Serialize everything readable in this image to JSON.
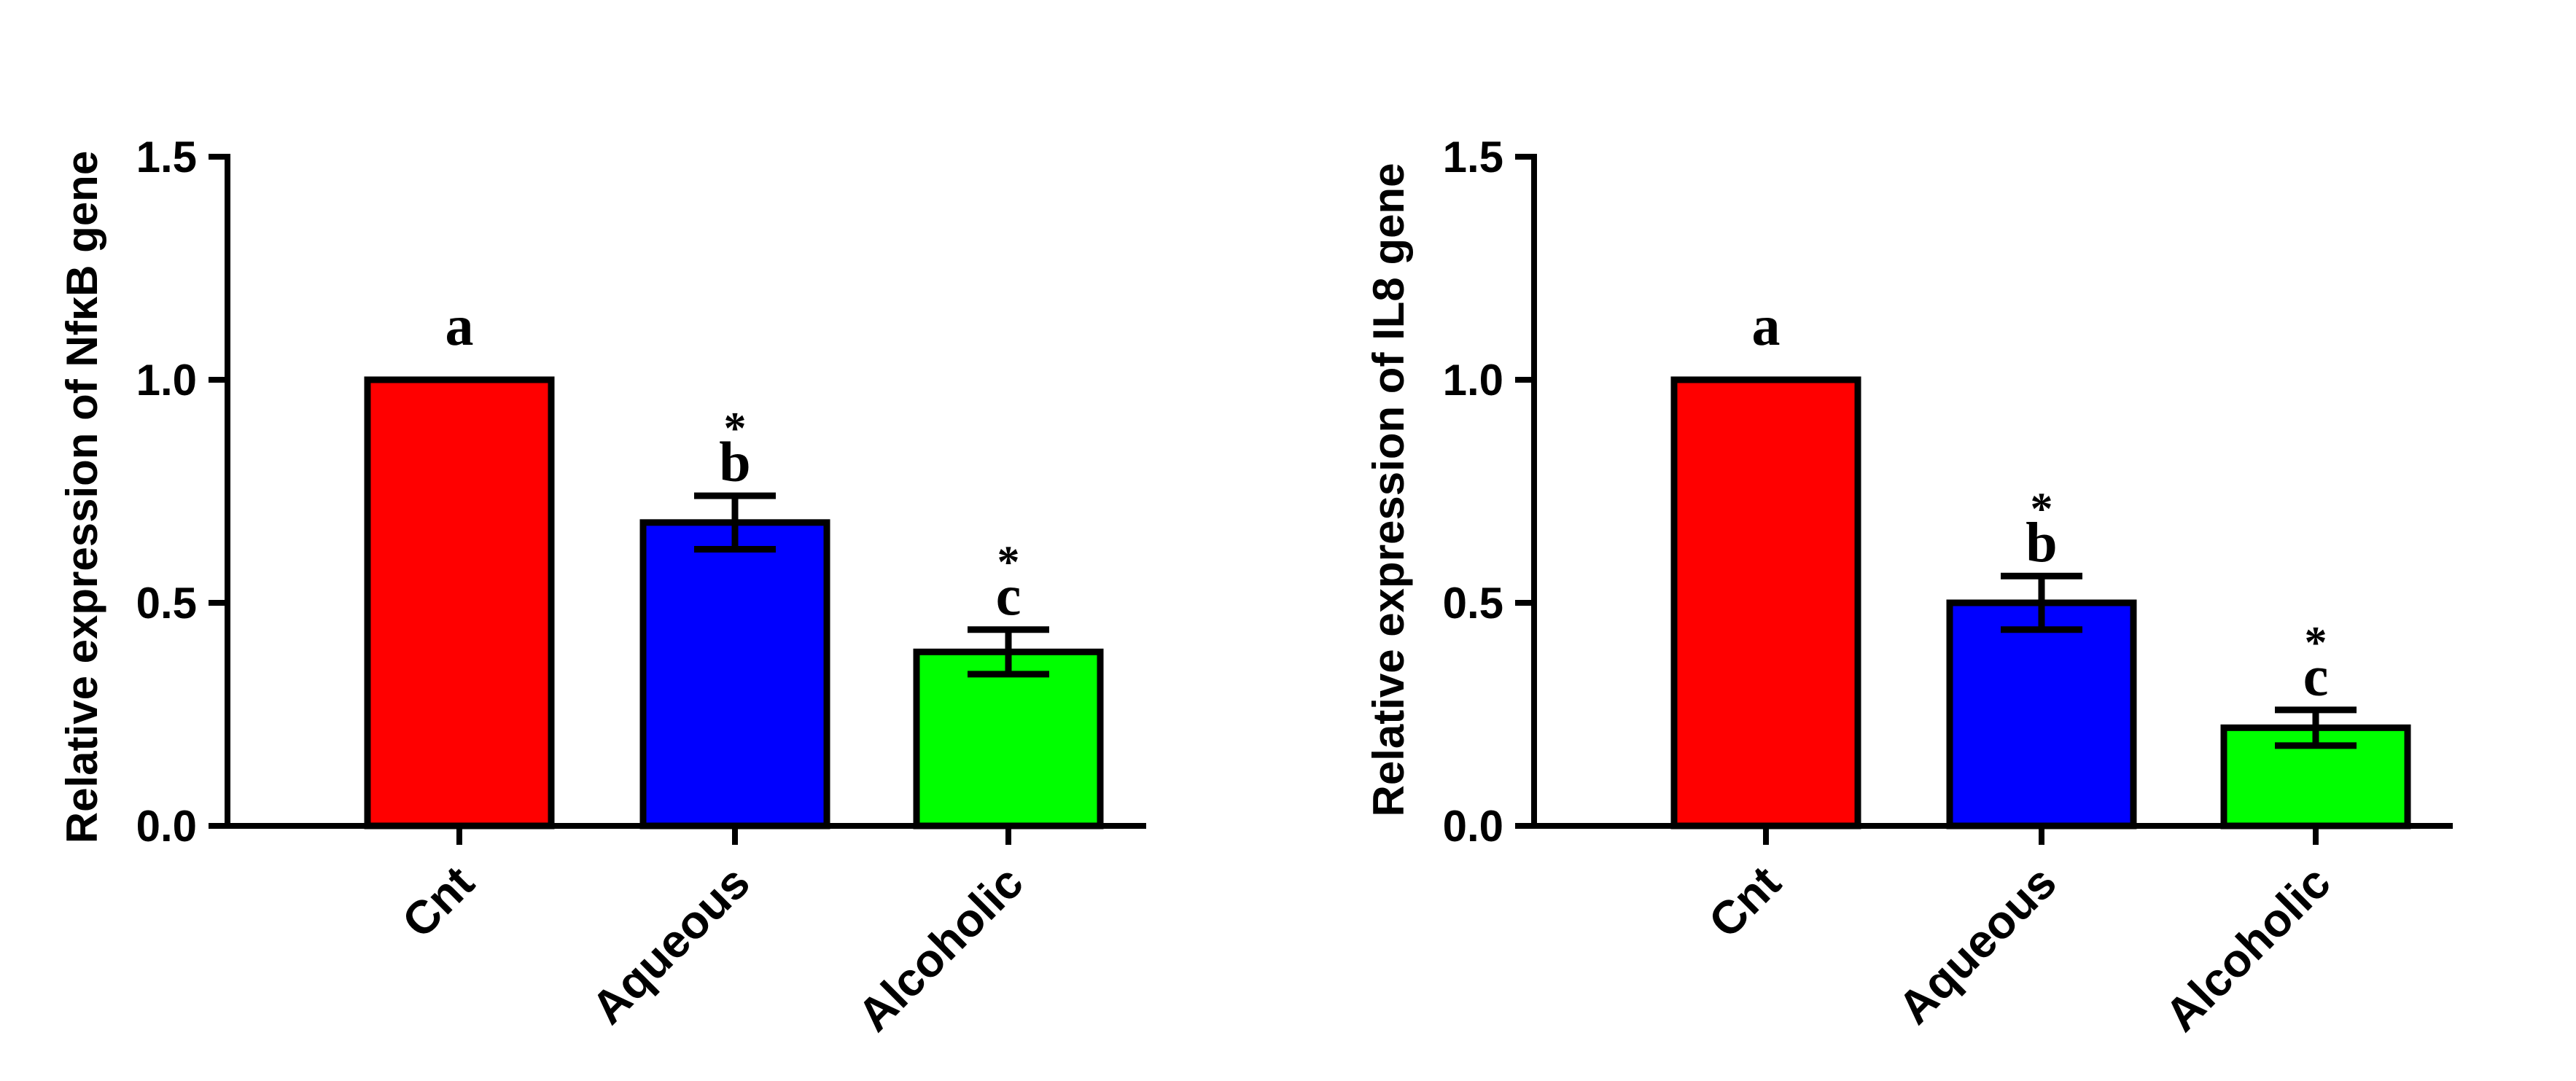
{
  "chart_data": [
    {
      "type": "bar",
      "ylabel": "Relative expression of NfκB gene",
      "xlabel": "",
      "title": "",
      "categories": [
        "Cnt",
        "Aqueous",
        "Alcoholic"
      ],
      "values": [
        1.0,
        0.68,
        0.39
      ],
      "errors": [
        0.0,
        0.06,
        0.05
      ],
      "colors": [
        "#ff0000",
        "#0000ff",
        "#00ff00"
      ],
      "ylim": [
        0,
        1.5
      ],
      "yticks": [
        0.0,
        0.5,
        1.0,
        1.5
      ],
      "ytick_labels": [
        "0.0",
        "0.5",
        "1.0",
        "1.5"
      ],
      "letters": [
        "a",
        "b",
        "c"
      ],
      "stars": [
        "",
        "*",
        "*"
      ],
      "grid": false,
      "legend": "none"
    },
    {
      "type": "bar",
      "ylabel": "Relative expression of IL8 gene",
      "xlabel": "",
      "title": "",
      "categories": [
        "Cnt",
        "Aqueous",
        "Alcoholic"
      ],
      "values": [
        1.0,
        0.5,
        0.22
      ],
      "errors": [
        0.0,
        0.06,
        0.04
      ],
      "colors": [
        "#ff0000",
        "#0000ff",
        "#00ff00"
      ],
      "ylim": [
        0,
        1.5
      ],
      "yticks": [
        0.0,
        0.5,
        1.0,
        1.5
      ],
      "ytick_labels": [
        "0.0",
        "0.5",
        "1.0",
        "1.5"
      ],
      "letters": [
        "a",
        "b",
        "c"
      ],
      "stars": [
        "",
        "*",
        "*"
      ],
      "grid": false,
      "legend": "none"
    }
  ]
}
